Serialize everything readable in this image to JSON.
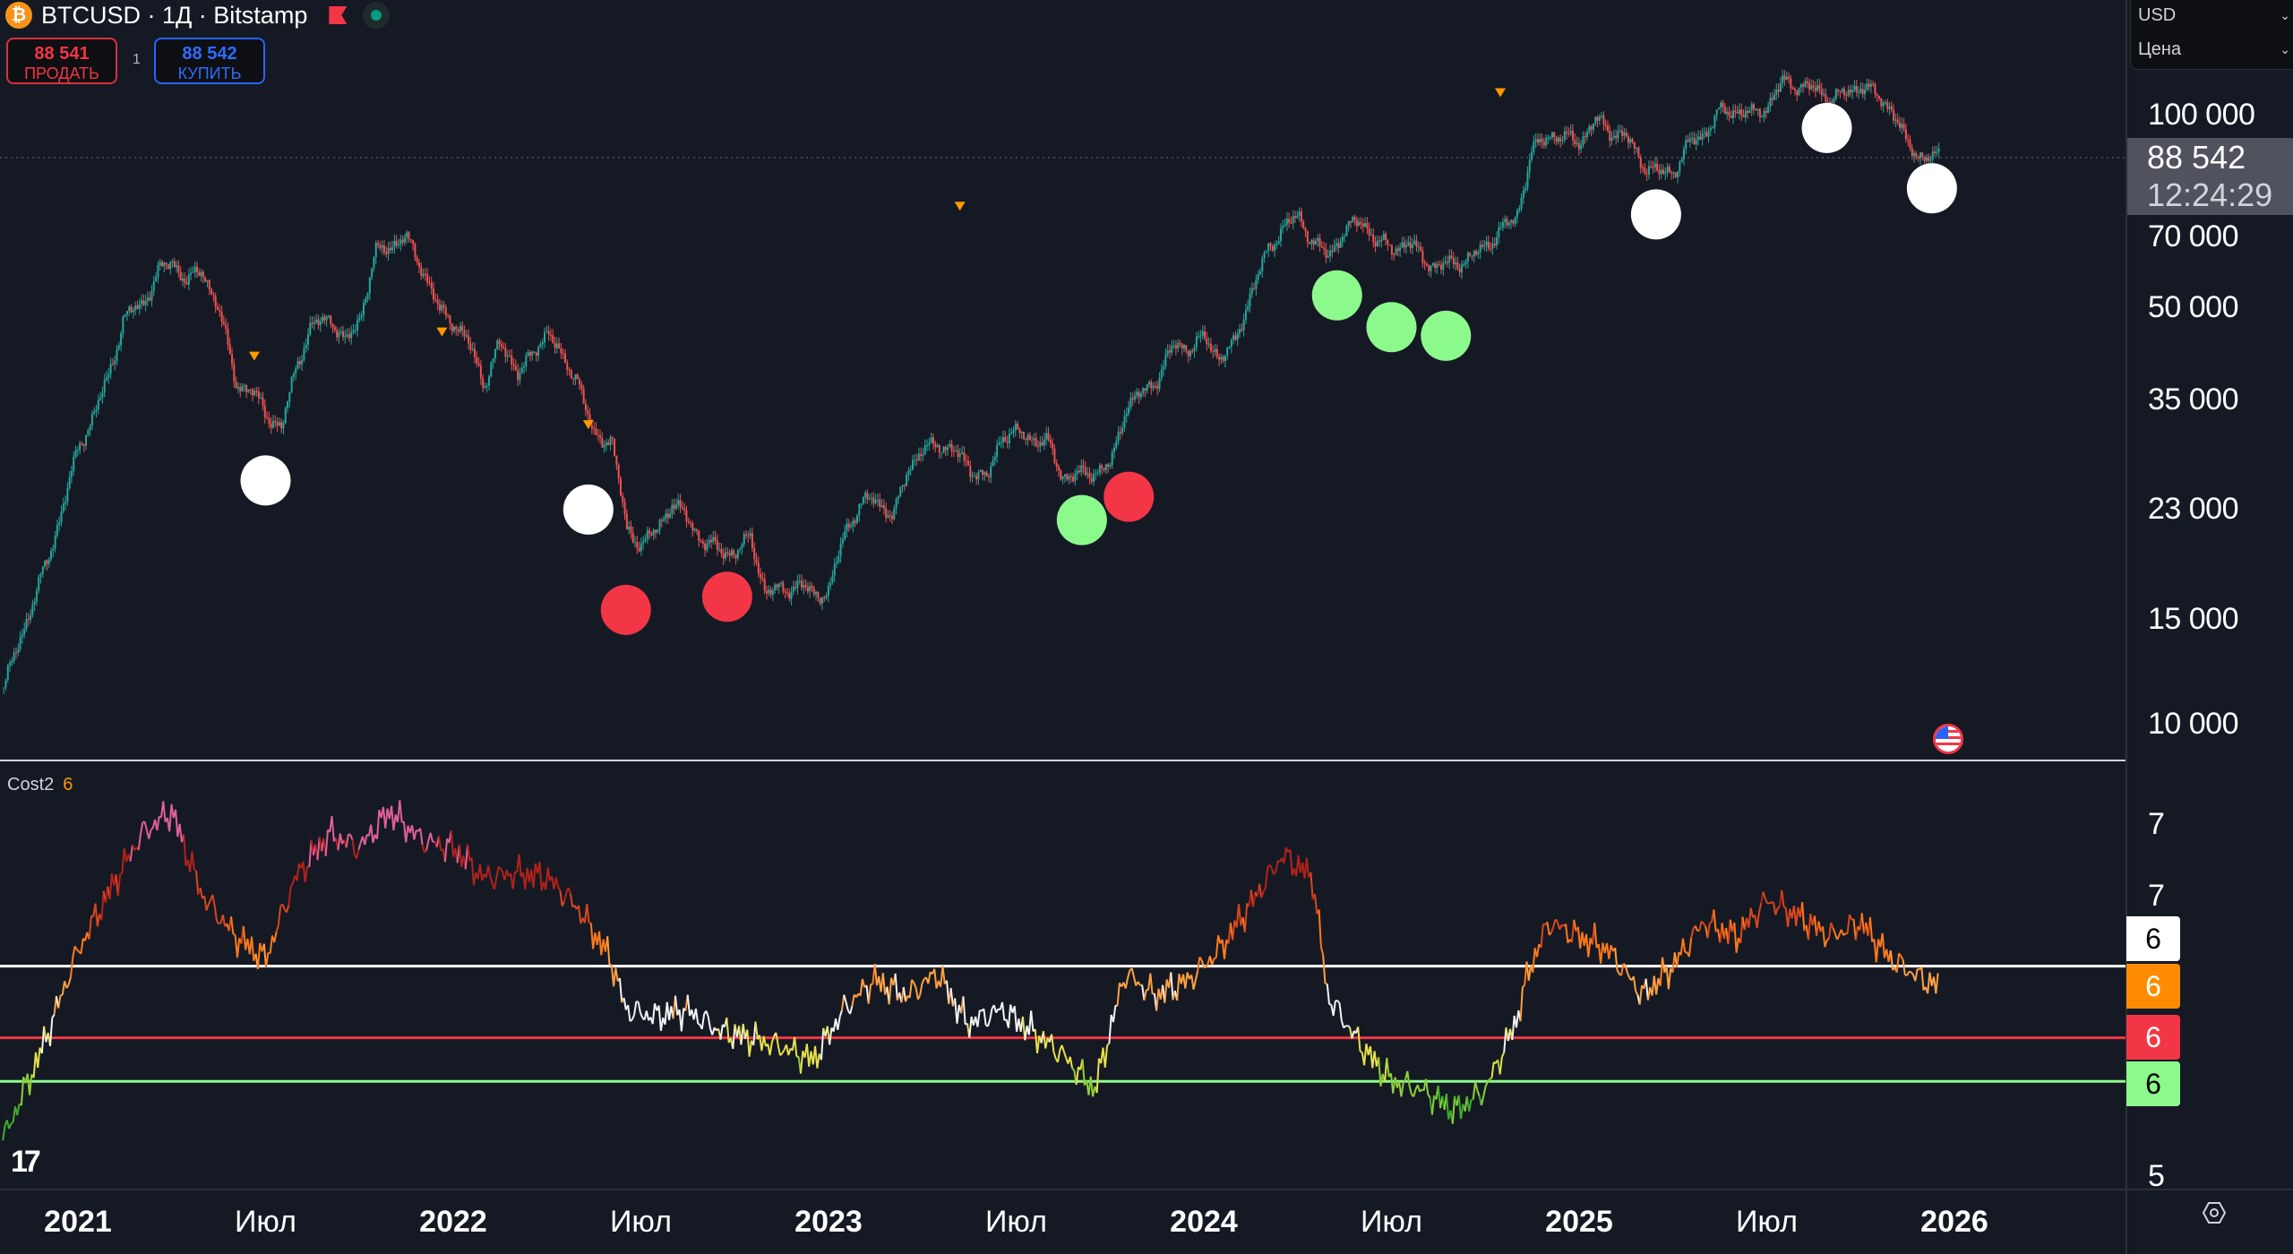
{
  "header": {
    "symbol_title": "BTCUSD · 1Д · Bitstamp",
    "coin_glyph": "₿"
  },
  "trade": {
    "sell_price": "88 541",
    "sell_label": "ПРОДАТЬ",
    "quantity": "1",
    "buy_price": "88 542",
    "buy_label": "КУПИТЬ"
  },
  "currency_menu": {
    "currency": "USD",
    "scale": "Цена"
  },
  "price_axis": {
    "labels": [
      "100 000",
      "70 000",
      "50 000",
      "35 000",
      "23 000",
      "15 000",
      "10 000"
    ],
    "last_price": "88 542",
    "countdown": "12:24:29"
  },
  "indicator": {
    "name": "Cost2",
    "value": "6",
    "axis_labels": [
      "7",
      "7",
      "5"
    ],
    "tags": [
      {
        "value": "6",
        "bg": "#ffffff",
        "fg": "#000000"
      },
      {
        "value": "6",
        "bg": "#ff8c00",
        "fg": "#ffffff"
      },
      {
        "value": "6",
        "bg": "#f23645",
        "fg": "#ffffff"
      },
      {
        "value": "6",
        "bg": "#8cf98c",
        "fg": "#000000"
      }
    ]
  },
  "time_axis": {
    "labels": [
      {
        "t": "2021",
        "y": true
      },
      {
        "t": "Июл",
        "y": false
      },
      {
        "t": "2022",
        "y": true
      },
      {
        "t": "Июл",
        "y": false
      },
      {
        "t": "2023",
        "y": true
      },
      {
        "t": "Июл",
        "y": false
      },
      {
        "t": "2024",
        "y": true
      },
      {
        "t": "Июл",
        "y": false
      },
      {
        "t": "2025",
        "y": true
      },
      {
        "t": "Июл",
        "y": false
      },
      {
        "t": "2026",
        "y": true
      }
    ]
  },
  "colors": {
    "bg": "#151924",
    "up": "#26a69a",
    "down": "#ef5350",
    "white_signal": "#ffffff",
    "red_signal": "#f23645",
    "green_signal": "#8cf98c",
    "marker": "#ff9800"
  },
  "chart_data": [
    {
      "type": "candlestick",
      "title": "BTCUSD · 1Д · Bitstamp",
      "yscale": "log",
      "ylim": [
        9000,
        135000
      ],
      "points": [
        [
          2020.8,
          11500
        ],
        [
          2020.87,
          15500
        ],
        [
          2020.92,
          19000
        ],
        [
          2021.0,
          29000
        ],
        [
          2021.04,
          33000
        ],
        [
          2021.08,
          38000
        ],
        [
          2021.12,
          48000
        ],
        [
          2021.17,
          50000
        ],
        [
          2021.21,
          57000
        ],
        [
          2021.25,
          59000
        ],
        [
          2021.29,
          55000
        ],
        [
          2021.33,
          57000
        ],
        [
          2021.37,
          50000
        ],
        [
          2021.42,
          37000
        ],
        [
          2021.46,
          36000
        ],
        [
          2021.5,
          33000
        ],
        [
          2021.54,
          31000
        ],
        [
          2021.58,
          40000
        ],
        [
          2021.62,
          46000
        ],
        [
          2021.67,
          48000
        ],
        [
          2021.71,
          43000
        ],
        [
          2021.75,
          48000
        ],
        [
          2021.79,
          61000
        ],
        [
          2021.83,
          63000
        ],
        [
          2021.87,
          65000
        ],
        [
          2021.92,
          57000
        ],
        [
          2021.96,
          49000
        ],
        [
          2022.0,
          47000
        ],
        [
          2022.04,
          43000
        ],
        [
          2022.08,
          37000
        ],
        [
          2022.12,
          43000
        ],
        [
          2022.17,
          39000
        ],
        [
          2022.21,
          41000
        ],
        [
          2022.25,
          46000
        ],
        [
          2022.29,
          40000
        ],
        [
          2022.33,
          38000
        ],
        [
          2022.37,
          30000
        ],
        [
          2022.42,
          30000
        ],
        [
          2022.46,
          21000
        ],
        [
          2022.5,
          20000
        ],
        [
          2022.54,
          21000
        ],
        [
          2022.58,
          23500
        ],
        [
          2022.62,
          22000
        ],
        [
          2022.67,
          20000
        ],
        [
          2022.71,
          19500
        ],
        [
          2022.75,
          19300
        ],
        [
          2022.79,
          20500
        ],
        [
          2022.83,
          16500
        ],
        [
          2022.87,
          16800
        ],
        [
          2022.92,
          17000
        ],
        [
          2022.96,
          16500
        ],
        [
          2023.0,
          16600
        ],
        [
          2023.04,
          21000
        ],
        [
          2023.08,
          23000
        ],
        [
          2023.12,
          24000
        ],
        [
          2023.17,
          22000
        ],
        [
          2023.21,
          27000
        ],
        [
          2023.25,
          28500
        ],
        [
          2023.29,
          29500
        ],
        [
          2023.33,
          28500
        ],
        [
          2023.37,
          27000
        ],
        [
          2023.42,
          25500
        ],
        [
          2023.46,
          30500
        ],
        [
          2023.5,
          30500
        ],
        [
          2023.54,
          30000
        ],
        [
          2023.58,
          29500
        ],
        [
          2023.62,
          26000
        ],
        [
          2023.67,
          26000
        ],
        [
          2023.71,
          26500
        ],
        [
          2023.75,
          27000
        ],
        [
          2023.79,
          34000
        ],
        [
          2023.83,
          35500
        ],
        [
          2023.87,
          37500
        ],
        [
          2023.92,
          43000
        ],
        [
          2023.96,
          42500
        ],
        [
          2024.0,
          44000
        ],
        [
          2024.04,
          41000
        ],
        [
          2024.08,
          43000
        ],
        [
          2024.12,
          52000
        ],
        [
          2024.17,
          62000
        ],
        [
          2024.21,
          68000
        ],
        [
          2024.25,
          70000
        ],
        [
          2024.29,
          64000
        ],
        [
          2024.33,
          60000
        ],
        [
          2024.37,
          67000
        ],
        [
          2024.42,
          69000
        ],
        [
          2024.46,
          64000
        ],
        [
          2024.5,
          62000
        ],
        [
          2024.54,
          64000
        ],
        [
          2024.58,
          60000
        ],
        [
          2024.62,
          58000
        ],
        [
          2024.67,
          59000
        ],
        [
          2024.71,
          60000
        ],
        [
          2024.75,
          63000
        ],
        [
          2024.79,
          67000
        ],
        [
          2024.83,
          70000
        ],
        [
          2024.87,
          90000
        ],
        [
          2024.92,
          97000
        ],
        [
          2024.96,
          95000
        ],
        [
          2025.0,
          94000
        ],
        [
          2025.04,
          102000
        ],
        [
          2025.08,
          98000
        ],
        [
          2025.12,
          96000
        ],
        [
          2025.17,
          86000
        ],
        [
          2025.21,
          83000
        ],
        [
          2025.25,
          84000
        ],
        [
          2025.29,
          93000
        ],
        [
          2025.33,
          97000
        ],
        [
          2025.37,
          105000
        ],
        [
          2025.42,
          106000
        ],
        [
          2025.46,
          104000
        ],
        [
          2025.5,
          108000
        ],
        [
          2025.54,
          118000
        ],
        [
          2025.58,
          117000
        ],
        [
          2025.62,
          115000
        ],
        [
          2025.67,
          111000
        ],
        [
          2025.71,
          113000
        ],
        [
          2025.75,
          117000
        ],
        [
          2025.79,
          112000
        ],
        [
          2025.83,
          107000
        ],
        [
          2025.87,
          93000
        ],
        [
          2025.92,
          88000
        ],
        [
          2025.96,
          88500
        ]
      ],
      "signals": [
        {
          "t": 2021.5,
          "p": 25500,
          "c": "white"
        },
        {
          "t": 2022.36,
          "p": 22800,
          "c": "white"
        },
        {
          "t": 2022.46,
          "p": 15500,
          "c": "red"
        },
        {
          "t": 2022.73,
          "p": 16300,
          "c": "red"
        },
        {
          "t": 2023.675,
          "p": 21900,
          "c": "green"
        },
        {
          "t": 2023.8,
          "p": 23950,
          "c": "red"
        },
        {
          "t": 2024.355,
          "p": 52000,
          "c": "green"
        },
        {
          "t": 2024.5,
          "p": 46000,
          "c": "green"
        },
        {
          "t": 2024.645,
          "p": 44500,
          "c": "green"
        },
        {
          "t": 2025.205,
          "p": 71000,
          "c": "white"
        },
        {
          "t": 2025.66,
          "p": 99000,
          "c": "white"
        },
        {
          "t": 2025.94,
          "p": 78500,
          "c": "white"
        }
      ],
      "markers": [
        {
          "t": 2021.47,
          "p": 41000
        },
        {
          "t": 2021.97,
          "p": 45000
        },
        {
          "t": 2022.36,
          "p": 31500
        },
        {
          "t": 2023.35,
          "p": 73000
        },
        {
          "t": 2024.79,
          "p": 113000
        }
      ],
      "last_price": 88542
    },
    {
      "type": "line",
      "title": "Cost2",
      "ylim": [
        5,
        7.5
      ],
      "levels": [
        {
          "value": 6.49,
          "color": "#ffffff"
        },
        {
          "value": 5.98,
          "color": "#f23645"
        },
        {
          "value": 5.67,
          "color": "#8cf98c"
        }
      ],
      "points": [
        [
          2020.8,
          5.25
        ],
        [
          2020.9,
          5.87
        ],
        [
          2021.0,
          6.6
        ],
        [
          2021.08,
          7.0
        ],
        [
          2021.17,
          7.43
        ],
        [
          2021.25,
          7.59
        ],
        [
          2021.33,
          7.0
        ],
        [
          2021.42,
          6.7
        ],
        [
          2021.5,
          6.54
        ],
        [
          2021.58,
          7.12
        ],
        [
          2021.67,
          7.43
        ],
        [
          2021.75,
          7.33
        ],
        [
          2021.83,
          7.59
        ],
        [
          2021.92,
          7.38
        ],
        [
          2022.0,
          7.33
        ],
        [
          2022.08,
          7.12
        ],
        [
          2022.17,
          7.15
        ],
        [
          2022.25,
          7.12
        ],
        [
          2022.33,
          6.91
        ],
        [
          2022.42,
          6.54
        ],
        [
          2022.46,
          6.18
        ],
        [
          2022.54,
          6.13
        ],
        [
          2022.62,
          6.18
        ],
        [
          2022.71,
          6.03
        ],
        [
          2022.79,
          5.98
        ],
        [
          2022.87,
          5.92
        ],
        [
          2022.96,
          5.82
        ],
        [
          2023.04,
          6.18
        ],
        [
          2023.12,
          6.39
        ],
        [
          2023.21,
          6.28
        ],
        [
          2023.29,
          6.44
        ],
        [
          2023.37,
          6.08
        ],
        [
          2023.46,
          6.18
        ],
        [
          2023.54,
          6.03
        ],
        [
          2023.62,
          5.87
        ],
        [
          2023.71,
          5.61
        ],
        [
          2023.79,
          6.44
        ],
        [
          2023.87,
          6.28
        ],
        [
          2023.96,
          6.39
        ],
        [
          2024.04,
          6.6
        ],
        [
          2024.12,
          6.91
        ],
        [
          2024.21,
          7.28
        ],
        [
          2024.29,
          7.12
        ],
        [
          2024.33,
          6.28
        ],
        [
          2024.42,
          5.92
        ],
        [
          2024.5,
          5.67
        ],
        [
          2024.58,
          5.61
        ],
        [
          2024.67,
          5.46
        ],
        [
          2024.75,
          5.61
        ],
        [
          2024.83,
          6.08
        ],
        [
          2024.87,
          6.49
        ],
        [
          2024.92,
          6.8
        ],
        [
          2025.0,
          6.7
        ],
        [
          2025.08,
          6.6
        ],
        [
          2025.17,
          6.28
        ],
        [
          2025.25,
          6.49
        ],
        [
          2025.33,
          6.8
        ],
        [
          2025.42,
          6.7
        ],
        [
          2025.5,
          6.96
        ],
        [
          2025.58,
          6.85
        ],
        [
          2025.67,
          6.7
        ],
        [
          2025.75,
          6.8
        ],
        [
          2025.83,
          6.54
        ],
        [
          2025.92,
          6.39
        ],
        [
          2025.96,
          6.34
        ]
      ]
    }
  ]
}
